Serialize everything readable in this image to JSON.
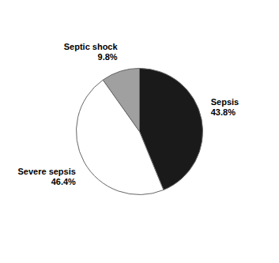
{
  "chart_data": {
    "type": "pie",
    "categories": [
      "Sepsis",
      "Severe sepsis",
      "Septic shock"
    ],
    "values": [
      43.8,
      46.4,
      9.8
    ],
    "value_labels": [
      "43.8%",
      "46.4%",
      "9.8%"
    ],
    "colors": [
      "#1a1a1a",
      "#ffffff",
      "#a0a0a0"
    ],
    "data_labels": true
  }
}
